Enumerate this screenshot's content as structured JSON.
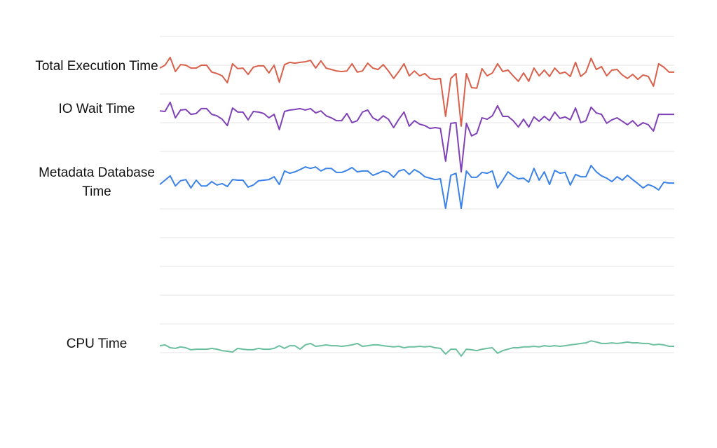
{
  "chart_data": {
    "type": "line",
    "ylim": [
      -1,
      11
    ],
    "grid": true,
    "series": [
      {
        "name": "Total Execution Time",
        "color": "#d9604a",
        "values": [
          9.9,
          10.0,
          10.27,
          9.78,
          10.02,
          10.0,
          9.9,
          9.9,
          10.0,
          10.0,
          9.76,
          9.71,
          9.63,
          9.39,
          10.05,
          9.88,
          9.9,
          9.68,
          9.93,
          9.98,
          9.98,
          9.73,
          10.0,
          9.41,
          10.02,
          10.1,
          10.07,
          10.1,
          10.12,
          10.17,
          9.9,
          10.15,
          9.9,
          9.85,
          9.8,
          9.78,
          9.8,
          10.05,
          9.76,
          9.8,
          10.07,
          9.9,
          9.85,
          10.02,
          9.8,
          9.54,
          9.78,
          10.05,
          9.63,
          9.8,
          9.63,
          9.71,
          9.54,
          9.51,
          9.54,
          8.22,
          9.54,
          9.71,
          7.88,
          9.71,
          9.22,
          9.2,
          9.88,
          9.63,
          9.73,
          10.05,
          9.78,
          9.83,
          9.63,
          9.44,
          9.73,
          9.44,
          9.9,
          9.63,
          9.83,
          9.61,
          9.9,
          9.71,
          9.76,
          9.61,
          10.1,
          9.61,
          9.76,
          10.24,
          9.85,
          9.95,
          9.63,
          9.83,
          9.85,
          9.66,
          9.54,
          9.68,
          9.51,
          9.66,
          9.61,
          9.27,
          10.05,
          9.93,
          9.76,
          9.76
        ]
      },
      {
        "name": "IO Wait Time",
        "color": "#8041b7",
        "values": [
          8.41,
          8.39,
          8.71,
          8.17,
          8.44,
          8.46,
          8.29,
          8.32,
          8.49,
          8.49,
          8.29,
          8.24,
          8.12,
          7.9,
          8.51,
          8.37,
          8.37,
          8.1,
          8.39,
          8.37,
          8.32,
          8.17,
          8.29,
          7.76,
          8.39,
          8.44,
          8.46,
          8.49,
          8.44,
          8.49,
          8.34,
          8.41,
          8.24,
          8.17,
          8.07,
          8.07,
          8.32,
          8.0,
          8.07,
          8.37,
          8.44,
          8.17,
          8.07,
          8.24,
          8.12,
          7.83,
          8.12,
          8.37,
          7.88,
          8.07,
          7.95,
          7.9,
          7.8,
          7.83,
          7.8,
          6.66,
          7.98,
          8.0,
          6.29,
          7.98,
          7.54,
          7.63,
          8.17,
          8.12,
          8.24,
          8.59,
          8.22,
          8.22,
          8.07,
          7.85,
          8.12,
          7.85,
          8.2,
          8.05,
          8.22,
          8.07,
          8.37,
          8.15,
          8.2,
          8.1,
          8.51,
          8.0,
          8.07,
          8.54,
          8.34,
          8.29,
          7.98,
          8.1,
          8.17,
          8.05,
          7.93,
          8.07,
          7.88,
          8.0,
          7.93,
          7.71,
          8.29,
          8.29,
          8.29,
          8.29
        ]
      },
      {
        "name": "Metadata Database Time",
        "color": "#3b82e8",
        "values": [
          5.85,
          6.0,
          6.15,
          5.8,
          5.98,
          6.02,
          5.73,
          6.0,
          5.8,
          5.8,
          5.95,
          5.83,
          5.88,
          5.78,
          6.02,
          6.0,
          6.0,
          5.76,
          5.83,
          5.98,
          6.0,
          6.02,
          6.12,
          5.85,
          6.32,
          6.24,
          6.29,
          6.37,
          6.46,
          6.41,
          6.46,
          6.32,
          6.41,
          6.41,
          6.27,
          6.27,
          6.34,
          6.44,
          6.29,
          6.32,
          6.32,
          6.17,
          6.24,
          6.32,
          6.27,
          6.1,
          6.32,
          6.37,
          6.2,
          6.37,
          6.27,
          6.12,
          6.07,
          6.02,
          6.05,
          5.02,
          6.17,
          6.24,
          5.02,
          6.32,
          6.1,
          6.1,
          6.27,
          6.24,
          6.32,
          5.73,
          6.0,
          6.29,
          6.15,
          6.05,
          6.07,
          5.93,
          6.41,
          6.0,
          6.29,
          5.85,
          6.34,
          6.24,
          6.27,
          5.83,
          6.2,
          6.12,
          6.12,
          6.51,
          6.29,
          6.15,
          6.07,
          5.95,
          6.12,
          6.0,
          6.17,
          6.02,
          5.88,
          5.73,
          5.85,
          5.78,
          5.66,
          5.93,
          5.9,
          5.9
        ]
      },
      {
        "name": "CPU Time",
        "color": "#6bbf9f",
        "values": [
          0.24,
          0.27,
          0.17,
          0.15,
          0.2,
          0.17,
          0.1,
          0.12,
          0.12,
          0.12,
          0.15,
          0.12,
          0.07,
          0.05,
          0.02,
          0.15,
          0.12,
          0.1,
          0.1,
          0.15,
          0.12,
          0.12,
          0.15,
          0.24,
          0.15,
          0.24,
          0.24,
          0.12,
          0.27,
          0.32,
          0.22,
          0.24,
          0.27,
          0.24,
          0.24,
          0.22,
          0.24,
          0.27,
          0.32,
          0.22,
          0.24,
          0.27,
          0.27,
          0.24,
          0.22,
          0.2,
          0.22,
          0.17,
          0.2,
          0.2,
          0.22,
          0.2,
          0.22,
          0.17,
          0.15,
          -0.05,
          0.12,
          0.12,
          -0.12,
          0.12,
          0.1,
          0.07,
          0.12,
          0.15,
          0.17,
          -0.02,
          0.07,
          0.12,
          0.17,
          0.17,
          0.2,
          0.2,
          0.22,
          0.2,
          0.24,
          0.22,
          0.24,
          0.22,
          0.24,
          0.27,
          0.29,
          0.32,
          0.34,
          0.41,
          0.37,
          0.32,
          0.32,
          0.34,
          0.32,
          0.34,
          0.37,
          0.34,
          0.34,
          0.32,
          0.32,
          0.27,
          0.29,
          0.27,
          0.22,
          0.22
        ]
      }
    ]
  }
}
